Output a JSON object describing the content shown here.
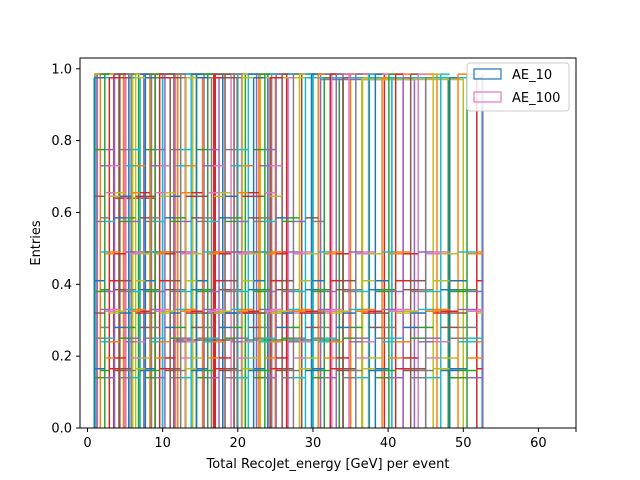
{
  "chart_data": {
    "type": "histogram-step",
    "xlabel": "Total RecoJet_energy [GeV] per event",
    "ylabel": "Entries",
    "xlim": [
      -1,
      65
    ],
    "ylim": [
      0,
      1.03
    ],
    "x_ticks": [
      0,
      10,
      20,
      30,
      40,
      50,
      60
    ],
    "y_ticks": [
      0.0,
      0.2,
      0.4,
      0.6,
      0.8,
      1.0
    ],
    "x_tick_labels": [
      "0",
      "10",
      "20",
      "30",
      "40",
      "50",
      "60"
    ],
    "y_tick_labels": [
      "0.0",
      "0.2",
      "0.4",
      "0.6",
      "0.8",
      "1.0"
    ],
    "grid": false,
    "legend_position": "top-right",
    "legend": [
      {
        "label": "AE_10",
        "color": "#1f77b4"
      },
      {
        "label": "AE_100",
        "color": "#e377c2"
      }
    ],
    "palette": [
      "#1f77b4",
      "#ff7f0e",
      "#2ca02c",
      "#d62728",
      "#9467bd",
      "#8c564b",
      "#e377c2",
      "#7f7f7f",
      "#bcbd22",
      "#17becf"
    ],
    "series": [
      {
        "color": "#1f77b4",
        "bins": [
          [
            1.0,
            5.5,
            0.985
          ],
          [
            5.5,
            10.0,
            0.49
          ],
          [
            10.0,
            18.0,
            0.985
          ],
          [
            18.0,
            24.0,
            0.32
          ],
          [
            24.0,
            30.0,
            0.985
          ]
        ]
      },
      {
        "color": "#ff7f0e",
        "bins": [
          [
            1.2,
            4.8,
            0.985
          ],
          [
            4.8,
            12.0,
            0.985
          ],
          [
            12.0,
            25.0,
            0.975
          ],
          [
            25.0,
            35.0,
            0.325
          ],
          [
            35.0,
            46.5,
            0.985
          ]
        ]
      },
      {
        "color": "#2ca02c",
        "bins": [
          [
            1.1,
            6.8,
            0.985
          ],
          [
            6.8,
            14.5,
            0.49
          ],
          [
            14.5,
            21.0,
            0.985
          ],
          [
            21.0,
            33.5,
            0.245
          ],
          [
            33.5,
            48.0,
            0.975
          ]
        ]
      },
      {
        "color": "#d62728",
        "bins": [
          [
            1.0,
            3.5,
            0.985
          ],
          [
            3.5,
            9.0,
            0.64
          ],
          [
            9.0,
            17.0,
            0.985
          ],
          [
            17.0,
            26.5,
            0.49
          ],
          [
            26.5,
            39.5,
            0.985
          ]
        ]
      },
      {
        "color": "#9467bd",
        "bins": [
          [
            1.3,
            7.5,
            0.985
          ],
          [
            7.5,
            15.5,
            0.985
          ],
          [
            15.5,
            22.5,
            0.32
          ],
          [
            22.5,
            31.0,
            0.985
          ],
          [
            31.0,
            43.5,
            0.97
          ]
        ]
      },
      {
        "color": "#8c564b",
        "bins": [
          [
            1.0,
            4.2,
            0.975
          ],
          [
            4.2,
            11.5,
            0.985
          ],
          [
            11.5,
            19.5,
            0.245
          ],
          [
            19.5,
            28.5,
            0.985
          ],
          [
            28.5,
            37.5,
            0.985
          ]
        ]
      },
      {
        "color": "#e377c2",
        "bins": [
          [
            1.2,
            5.0,
            0.985
          ],
          [
            5.0,
            13.0,
            0.975
          ],
          [
            13.0,
            20.5,
            0.985
          ],
          [
            20.5,
            32.5,
            0.32
          ],
          [
            32.5,
            42.0,
            0.985
          ]
        ]
      },
      {
        "color": "#7f7f7f",
        "bins": [
          [
            1.1,
            8.5,
            0.985
          ],
          [
            8.5,
            16.5,
            0.975
          ],
          [
            16.5,
            24.5,
            0.49
          ],
          [
            24.5,
            34.0,
            0.985
          ],
          [
            34.0,
            45.0,
            0.975
          ]
        ]
      },
      {
        "color": "#bcbd22",
        "bins": [
          [
            1.0,
            6.0,
            0.985
          ],
          [
            6.0,
            14.0,
            0.985
          ],
          [
            14.0,
            23.0,
            0.985
          ],
          [
            23.0,
            36.5,
            0.975
          ],
          [
            36.5,
            50.0,
            0.97
          ]
        ]
      },
      {
        "color": "#17becf",
        "bins": [
          [
            1.0,
            10.0,
            0.975
          ],
          [
            10.0,
            20.0,
            0.985
          ],
          [
            20.0,
            30.0,
            0.985
          ],
          [
            30.0,
            40.5,
            0.975
          ],
          [
            40.5,
            52.5,
            0.975
          ]
        ]
      }
    ],
    "bin_edges_overlay": [
      0.9,
      1.7,
      2.3,
      2.9,
      3.6,
      4.3,
      5.1,
      5.8,
      6.4,
      7.0,
      7.7,
      8.3,
      9.0,
      9.6,
      10.3,
      11.0,
      11.7,
      12.4,
      13.1,
      13.8,
      14.5,
      15.3,
      16.0,
      16.8,
      17.5,
      18.3,
      19.1,
      19.9,
      20.6,
      21.4,
      22.1,
      22.8,
      23.6,
      24.3,
      25.1,
      25.9,
      26.7,
      27.4,
      28.2,
      29.0,
      29.8,
      30.7,
      31.5,
      32.3,
      33.1,
      34.0,
      34.8,
      35.7,
      36.6,
      37.4,
      38.3,
      39.2,
      40.1,
      41.0,
      42.0,
      43.0,
      44.0,
      45.0,
      46.0,
      47.0,
      48.2,
      49.3,
      50.5,
      51.8,
      52.6
    ],
    "overlay_levels": [
      0.975,
      0.985,
      0.775,
      0.73,
      0.655,
      0.645,
      0.585,
      0.575,
      0.49,
      0.485,
      0.41,
      0.385,
      0.38,
      0.33,
      0.325,
      0.32,
      0.28,
      0.25,
      0.24,
      0.195,
      0.165,
      0.16,
      0.14
    ]
  }
}
